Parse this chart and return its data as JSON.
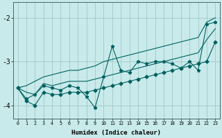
{
  "x": [
    0,
    1,
    2,
    3,
    4,
    5,
    6,
    7,
    8,
    9,
    10,
    11,
    12,
    13,
    14,
    15,
    16,
    17,
    18,
    19,
    20,
    21,
    22,
    23
  ],
  "line_main": [
    -3.6,
    -3.85,
    -3.75,
    -3.55,
    -3.6,
    -3.65,
    -3.55,
    -3.6,
    -3.8,
    -4.05,
    -3.35,
    -2.65,
    -3.2,
    -3.25,
    -3.0,
    -3.05,
    -3.0,
    -3.0,
    -3.05,
    -3.15,
    -3.0,
    -3.2,
    -2.15,
    -2.1
  ],
  "line_upper": [
    -3.6,
    -3.55,
    -3.45,
    -3.35,
    -3.3,
    -3.25,
    -3.2,
    -3.2,
    -3.15,
    -3.1,
    -3.0,
    -2.95,
    -2.9,
    -2.85,
    -2.8,
    -2.75,
    -2.7,
    -2.65,
    -2.6,
    -2.55,
    -2.5,
    -2.45,
    -2.1,
    -2.0
  ],
  "line_lower": [
    -3.6,
    -3.9,
    -4.0,
    -3.7,
    -3.75,
    -3.75,
    -3.7,
    -3.7,
    -3.7,
    -3.65,
    -3.6,
    -3.55,
    -3.5,
    -3.45,
    -3.4,
    -3.35,
    -3.3,
    -3.25,
    -3.2,
    -3.15,
    -3.1,
    -3.05,
    -3.0,
    -2.55
  ],
  "line_mid": [
    -3.6,
    -3.7,
    -3.75,
    -3.5,
    -3.55,
    -3.5,
    -3.45,
    -3.45,
    -3.45,
    -3.4,
    -3.35,
    -3.3,
    -3.25,
    -3.2,
    -3.15,
    -3.1,
    -3.05,
    -3.0,
    -2.95,
    -2.9,
    -2.85,
    -2.8,
    -2.5,
    -2.25
  ],
  "bgcolor": "#c8eaea",
  "grid_color": "#a0c8c8",
  "line_color": "#006060",
  "ylim": [
    -4.3,
    -1.65
  ],
  "xlim": [
    -0.5,
    23.5
  ],
  "xlabel": "Humidex (Indice chaleur)",
  "yticks": [
    -4,
    -3,
    -2
  ],
  "xtick_labels": [
    "0",
    "1",
    "2",
    "3",
    "4",
    "5",
    "6",
    "7",
    "8",
    "9",
    "10",
    "11",
    "12",
    "13",
    "14",
    "15",
    "16",
    "17",
    "18",
    "19",
    "20",
    "21",
    "22",
    "23"
  ]
}
